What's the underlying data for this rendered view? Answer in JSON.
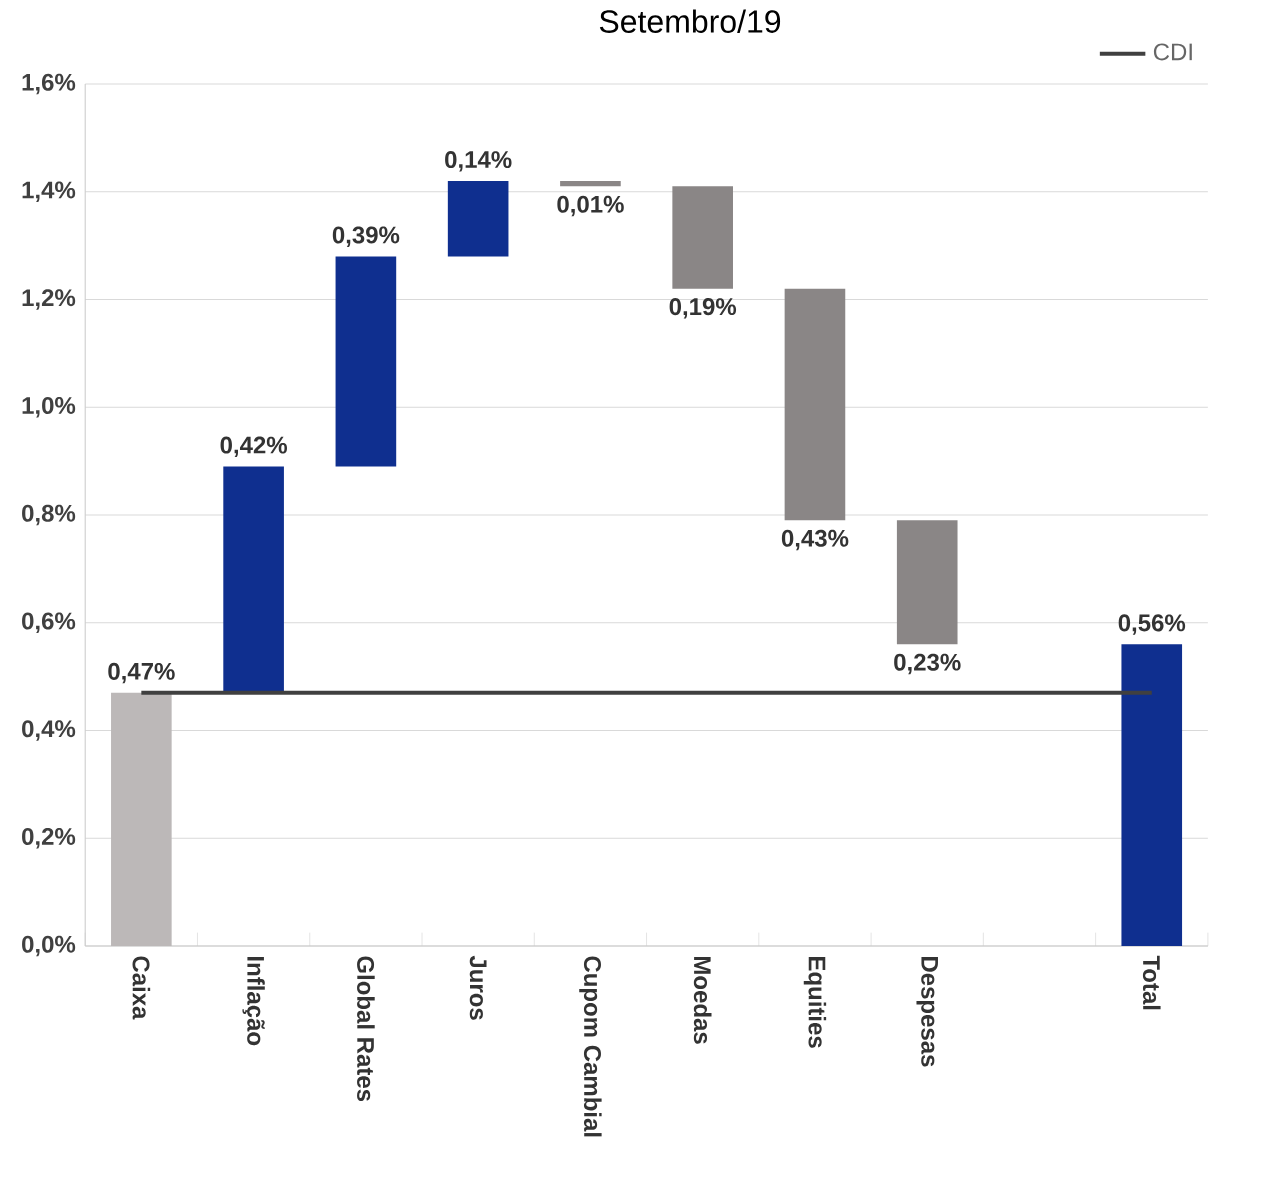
{
  "chart_data": {
    "type": "bar",
    "title": "Setembro/19",
    "categories": [
      "Caixa",
      "Inflação",
      "Global Rates",
      "Juros",
      "Cupom Cambial",
      "Moedas",
      "Equities",
      "Despesas",
      null,
      "Total"
    ],
    "values": [
      0.47,
      0.42,
      0.39,
      0.14,
      -0.01,
      -0.19,
      -0.43,
      -0.23,
      null,
      0.56
    ],
    "base": [
      0,
      0.47,
      0.89,
      1.28,
      1.42,
      1.41,
      1.22,
      0.79,
      null,
      0
    ],
    "colors": [
      "#bcb8b8",
      "#0f2f8f",
      "#0f2f8f",
      "#0f2f8f",
      "#8a8686",
      "#8a8686",
      "#8a8686",
      "#8a8686",
      null,
      "#0f2f8f"
    ],
    "value_labels": [
      "0,47%",
      "0,42%",
      "0,39%",
      "0,14%",
      "0,01%",
      "0,19%",
      "0,43%",
      "0,23%",
      null,
      "0,56%"
    ],
    "ylim": [
      0,
      1.6
    ],
    "yticks": [
      {
        "value": 0,
        "label": "0,0%"
      },
      {
        "value": 0.2,
        "label": "0,2%"
      },
      {
        "value": 0.4,
        "label": "0,4%"
      },
      {
        "value": 0.6,
        "label": "0,6%"
      },
      {
        "value": 0.8,
        "label": "0,8%"
      },
      {
        "value": 1.0,
        "label": "1,0%"
      },
      {
        "value": 1.2,
        "label": "1,2%"
      },
      {
        "value": 1.4,
        "label": "1,4%"
      },
      {
        "value": 1.6,
        "label": "1,6%"
      }
    ],
    "grid": "y",
    "legend": "top right",
    "ref_lines": [
      {
        "axis": "y",
        "value": 0.47,
        "label": "CDI",
        "color": "#404040"
      }
    ]
  }
}
